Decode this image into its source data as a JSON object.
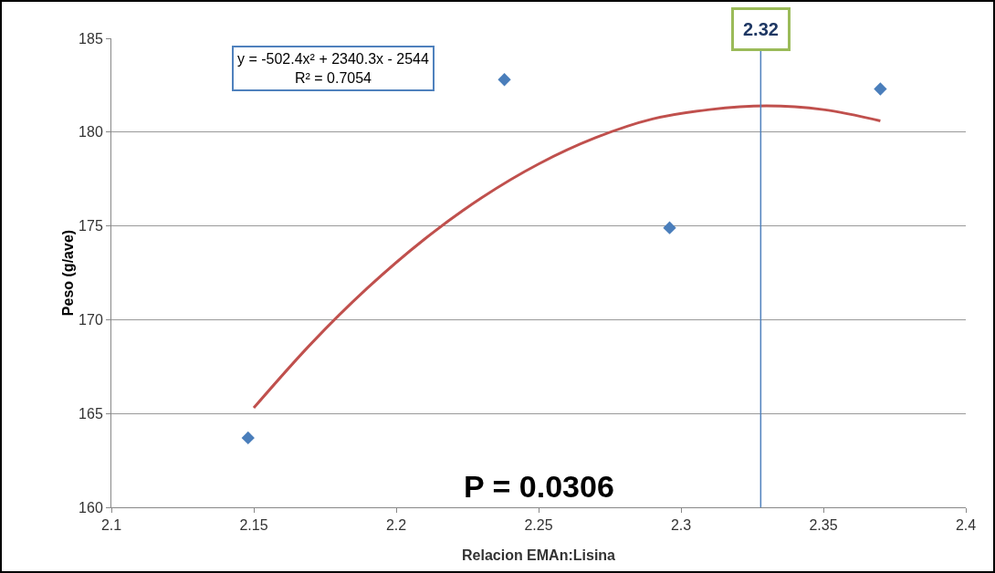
{
  "chart_data": {
    "type": "scatter",
    "xlabel": "Relacion EMAn:Lisina",
    "ylabel": "Peso (g/ave)",
    "xlim": [
      2.1,
      2.4
    ],
    "xticks": [
      2.1,
      2.15,
      2.2,
      2.25,
      2.3,
      2.35,
      2.4
    ],
    "ylim": [
      160,
      185
    ],
    "yticks": [
      160,
      165,
      170,
      175,
      180,
      185
    ],
    "grid": "y",
    "marker": "diamond",
    "series": [
      {
        "color": "#4a7ebb",
        "x": [
          2.148,
          2.238,
          2.296,
          2.37
        ],
        "values": [
          163.7,
          182.8,
          174.9,
          182.3
        ]
      },
      {
        "type": "line",
        "color": "#c0504d",
        "marker": "none",
        "x": [
          2.15,
          2.17,
          2.19,
          2.21,
          2.23,
          2.25,
          2.27,
          2.29,
          2.31,
          2.33,
          2.35,
          2.37
        ],
        "values": [
          165.3,
          168.7,
          171.7,
          174.3,
          176.5,
          178.3,
          179.7,
          180.7,
          181.2,
          181.4,
          181.2,
          180.6
        ]
      }
    ],
    "ref_lines": [
      {
        "axis": "x",
        "value": 2.328,
        "color": "#4f81bd"
      }
    ],
    "annotations": [
      "y = -502.4x² + 2340.3x - 2544\nR² = 0.7054",
      "P = 0.0306",
      "2.32"
    ]
  }
}
